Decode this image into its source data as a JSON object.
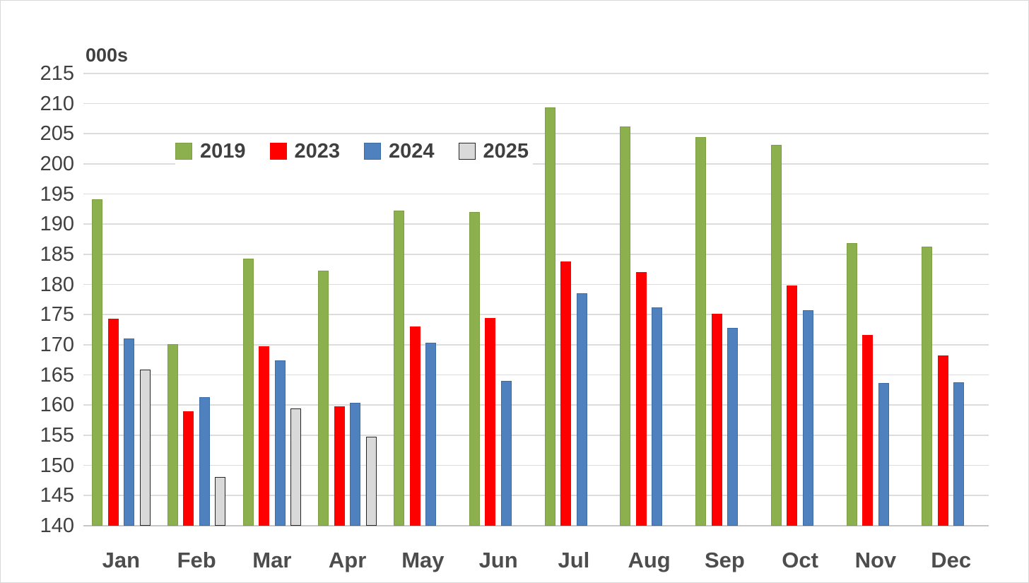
{
  "chart_data": {
    "type": "bar",
    "title": "",
    "unit_label": "000s",
    "categories": [
      "Jan",
      "Feb",
      "Mar",
      "Apr",
      "May",
      "Jun",
      "Jul",
      "Aug",
      "Sep",
      "Oct",
      "Nov",
      "Dec"
    ],
    "series": [
      {
        "name": "2019",
        "color": "#8DB04E",
        "border": "#7D9E42",
        "values": [
          194.1,
          170.1,
          184.3,
          182.3,
          192.3,
          192.0,
          209.4,
          206.2,
          204.5,
          203.2,
          186.9,
          186.3
        ]
      },
      {
        "name": "2023",
        "color": "#FF0000",
        "border": "#FF0000",
        "values": [
          174.3,
          159.0,
          169.8,
          159.8,
          173.0,
          174.4,
          183.8,
          182.1,
          175.2,
          179.9,
          171.6,
          168.3
        ]
      },
      {
        "name": "2024",
        "color": "#4E81BD",
        "border": "#3C6BA5",
        "values": [
          171.1,
          161.3,
          167.4,
          160.4,
          170.4,
          164.0,
          178.6,
          176.2,
          172.8,
          175.7,
          163.7,
          163.8
        ]
      },
      {
        "name": "2025",
        "color": "#D9D9D9",
        "border": "#262626",
        "values": [
          165.9,
          148.1,
          159.5,
          154.8,
          null,
          null,
          null,
          null,
          null,
          null,
          null,
          null
        ]
      }
    ],
    "ylim": [
      140,
      215
    ],
    "ytick_step": 5,
    "ytick_labels": [
      "140",
      "145",
      "150",
      "155",
      "160",
      "165",
      "170",
      "175",
      "180",
      "185",
      "190",
      "195",
      "200",
      "205",
      "210",
      "215"
    ],
    "grid": "horizontal",
    "legend_position": "inside-top-left"
  },
  "colors": {
    "text": "#404040",
    "gridline": "#DCDCDC",
    "axis_line": "#C6C6C6",
    "background": "#FFFFFF",
    "canvas_border": "#D9D9D9"
  }
}
